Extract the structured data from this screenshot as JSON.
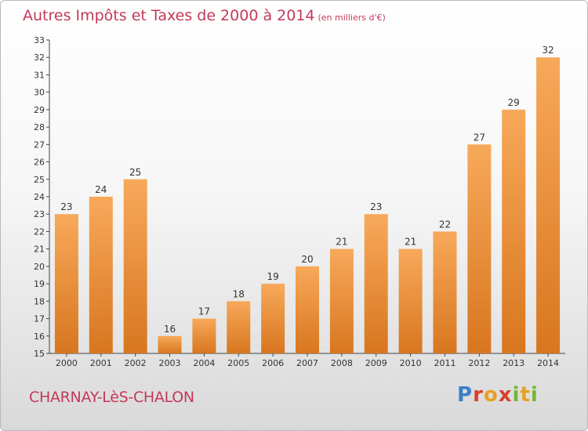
{
  "header": {
    "title": "Autres Impôts et Taxes de 2000 à 2014",
    "unit": "(en milliers d'€)"
  },
  "footer": {
    "commune": "CHARNAY-LèS-CHALON",
    "logo_text": "Proxiti"
  },
  "chart_data": {
    "type": "bar",
    "title": "Autres Impôts et Taxes de 2000 à 2014",
    "subtitle": "(en milliers d'€)",
    "xlabel": "",
    "ylabel": "",
    "categories": [
      "2000",
      "2001",
      "2002",
      "2003",
      "2004",
      "2005",
      "2006",
      "2007",
      "2008",
      "2009",
      "2010",
      "2011",
      "2012",
      "2013",
      "2014"
    ],
    "values": [
      23,
      24,
      25,
      16,
      17,
      18,
      19,
      20,
      21,
      23,
      21,
      22,
      27,
      29,
      32
    ],
    "ylim": [
      15,
      33
    ],
    "yticks": [
      15,
      16,
      17,
      18,
      19,
      20,
      21,
      22,
      23,
      24,
      25,
      26,
      27,
      28,
      29,
      30,
      31,
      32,
      33
    ],
    "grid": false,
    "legend": "none",
    "colors": {
      "bar_light": "#f7a95a",
      "bar_dark": "#d8761f",
      "title": "#c4395a",
      "axis": "#444444"
    }
  }
}
